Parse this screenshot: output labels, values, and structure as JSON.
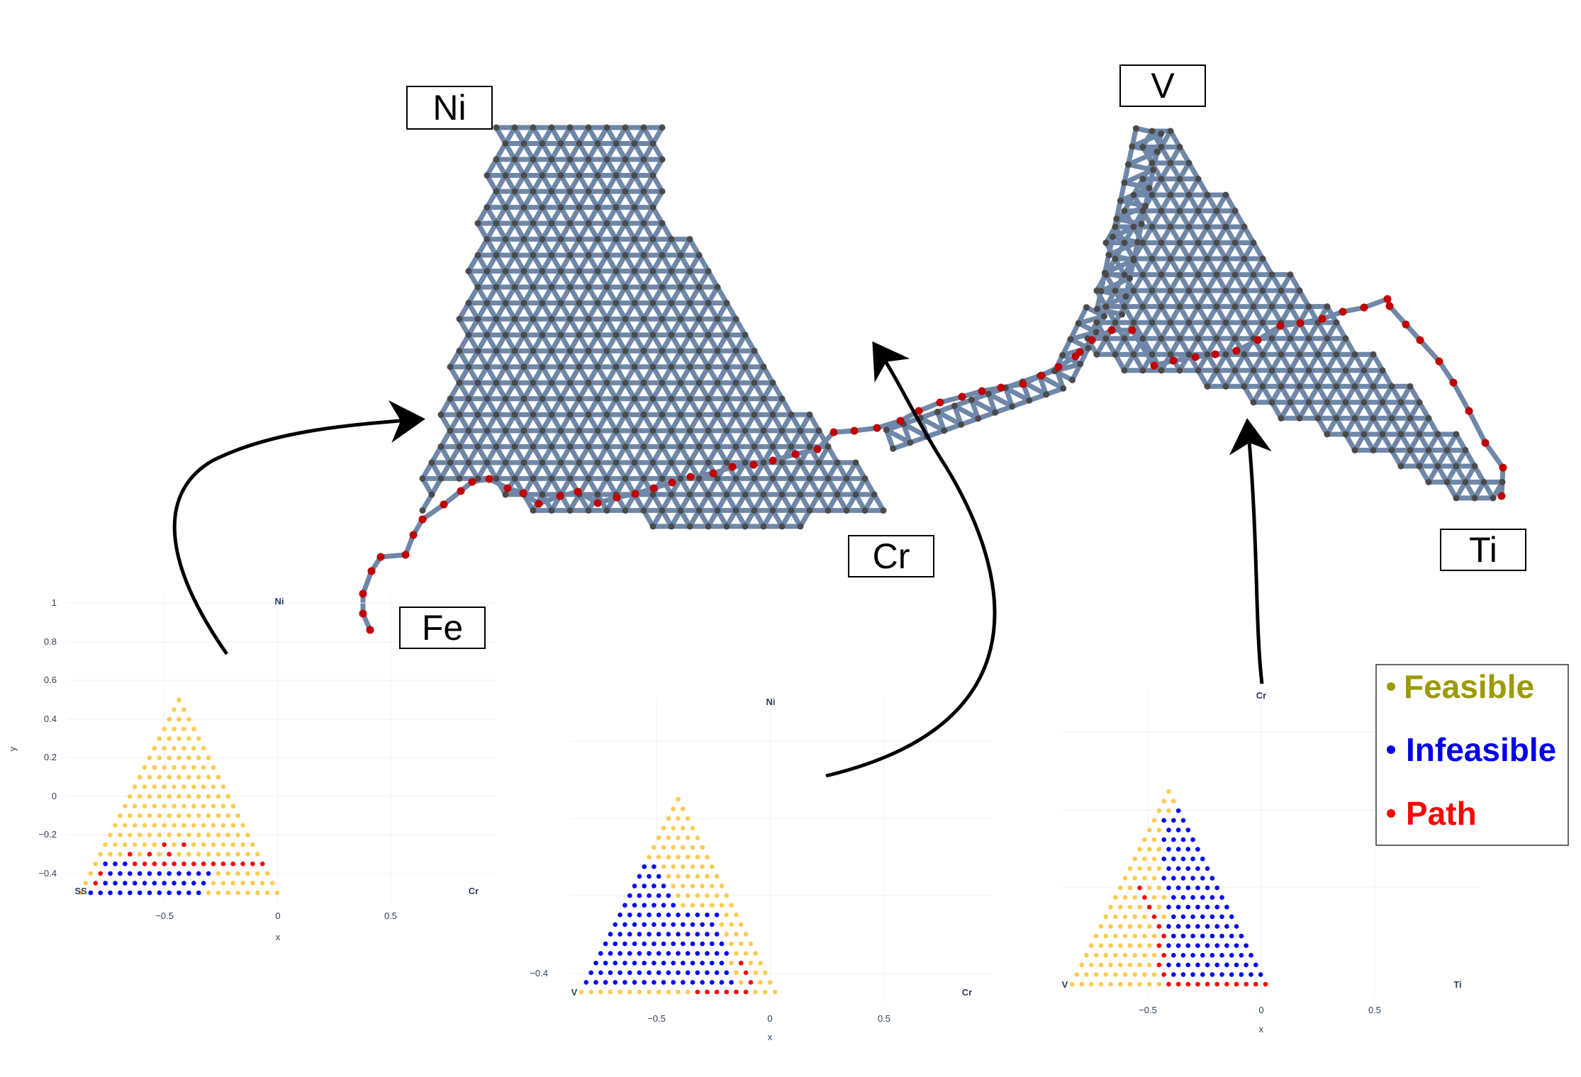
{
  "figure_labels": {
    "ni": "Ni",
    "fe": "Fe",
    "cr": "Cr",
    "v": "V",
    "ti": "Ti"
  },
  "legend": [
    {
      "marker": "•",
      "label": "Feasible",
      "color": "#9c9a00"
    },
    {
      "marker": "•",
      "label": "Infeasible",
      "color": "#0000ee"
    },
    {
      "marker": "•",
      "label": "Path",
      "color": "#ff0000"
    }
  ],
  "colors": {
    "feasible_point": "#fecb52",
    "infeasible_point": "#0000ff",
    "path_point": "#ff0000",
    "network_edge": "#6f87a8",
    "network_node": "#4a4a4a",
    "network_path_node": "#c00000",
    "arrow": "#000000"
  },
  "chart_data": [
    {
      "type": "scatter",
      "title": "",
      "apex_labels": {
        "top": "Ni",
        "left": "Fe",
        "right": "Cr"
      },
      "left_corner_text": "SS",
      "xlabel": "x",
      "ylabel": "y",
      "xticks": [
        "−0.5",
        "0",
        "0.5"
      ],
      "yticks": [
        "1",
        "0.8",
        "0.6",
        "0.4",
        "0.2",
        "0",
        "−0.2",
        "−0.4"
      ],
      "grid_points_per_side": 21,
      "series": [
        {
          "name": "Feasible",
          "color": "#fecb52",
          "region": "rows 5–20 (top) and right part of rows 0–4"
        },
        {
          "name": "Infeasible",
          "color": "#0000ff",
          "region": "left part of rows 0–3"
        },
        {
          "name": "Path",
          "color": "#ff0000",
          "region": "row 3 and a bend near the left edge"
        }
      ]
    },
    {
      "type": "scatter",
      "title": "",
      "apex_labels": {
        "top": "Ni",
        "left": "V",
        "right": "Cr"
      },
      "xlabel": "x",
      "xticks": [
        "−0.5",
        "0",
        "0.5"
      ],
      "yticks": [
        "−0.4"
      ],
      "grid_points_per_side": 21,
      "series": [
        {
          "name": "Feasible",
          "color": "#fecb52",
          "region": "bottom row, top, and right band"
        },
        {
          "name": "Infeasible",
          "color": "#0000ff",
          "region": "left and center region"
        },
        {
          "name": "Path",
          "color": "#ff0000",
          "region": "bottom row near Cr corner"
        }
      ]
    },
    {
      "type": "scatter",
      "title": "",
      "apex_labels": {
        "top": "Cr",
        "left": "V",
        "right": "Ti"
      },
      "xlabel": "x",
      "xticks": [
        "−0.5",
        "0",
        "0.5"
      ],
      "grid_points_per_side": 21,
      "series": [
        {
          "name": "Feasible",
          "color": "#fecb52",
          "region": "left band of the triangle"
        },
        {
          "name": "Infeasible",
          "color": "#0000ff",
          "region": "center and right region"
        },
        {
          "name": "Path",
          "color": "#ff0000",
          "region": "diagonal from left edge down to bottom row, then bottom row to Ti"
        }
      ]
    }
  ]
}
